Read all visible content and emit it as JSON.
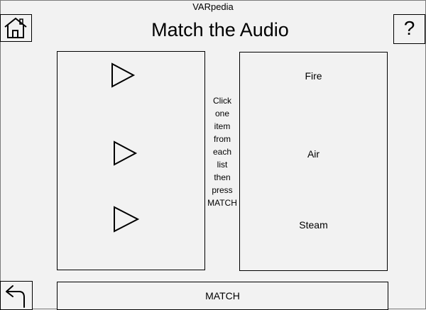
{
  "app": {
    "window_title": "VARpedia"
  },
  "header": {
    "title": "Match the Audio",
    "home_icon": "home-icon",
    "help_label": "?"
  },
  "audio_list": {
    "items": [
      {
        "icon": "play-icon"
      },
      {
        "icon": "play-icon"
      },
      {
        "icon": "play-icon"
      }
    ]
  },
  "instructions": {
    "lines": [
      "Click",
      "one",
      "item",
      "from",
      "each",
      "list",
      "then",
      "press",
      "MATCH"
    ]
  },
  "word_list": {
    "items": [
      {
        "label": "Fire"
      },
      {
        "label": "Air"
      },
      {
        "label": "Steam"
      }
    ]
  },
  "footer": {
    "back_icon": "back-arrow-icon",
    "match_label": "MATCH"
  }
}
